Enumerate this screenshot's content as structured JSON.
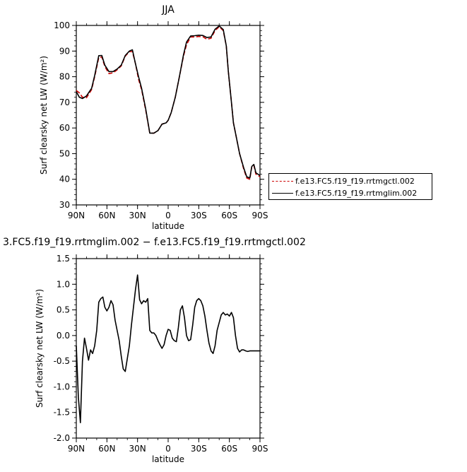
{
  "chart_data": [
    {
      "type": "line",
      "title": "JJA",
      "xlabel": "latitude",
      "ylabel": "Surf clearsky net LW (W/m²)",
      "ylim": [
        30,
        100
      ],
      "yticks": [
        30,
        40,
        50,
        60,
        70,
        80,
        90,
        100
      ],
      "xlim": [
        90,
        -90
      ],
      "xticks": [
        90,
        60,
        30,
        0,
        -30,
        -60,
        -90
      ],
      "xticklabels": [
        "90N",
        "60N",
        "30N",
        "0",
        "30S",
        "60S",
        "90S"
      ],
      "legend_position": "right",
      "series": [
        {
          "name": "f.e13.FC5.f19_f19.rrtmgctl.002",
          "color": "#cc0000",
          "dash": "dashed",
          "x": [
            90,
            87,
            84,
            80,
            75,
            72,
            68,
            65,
            62,
            58,
            54,
            50,
            46,
            42,
            38,
            35,
            32,
            29,
            26,
            22,
            18,
            14,
            10,
            6,
            2,
            0,
            -3,
            -7,
            -11,
            -15,
            -18,
            -22,
            -26,
            -30,
            -34,
            -38,
            -42,
            -46,
            -50,
            -54,
            -57,
            -59,
            -62,
            -64,
            -67,
            -70,
            -74,
            -77,
            -80,
            -82,
            -84,
            -86,
            -88,
            -90
          ],
          "values": [
            74.6,
            73.7,
            72.0,
            71.8,
            75.0,
            80.0,
            87.5,
            87.7,
            84.0,
            81.2,
            81.5,
            82.7,
            84.2,
            88.0,
            89.8,
            89.8,
            85.0,
            79.0,
            75.0,
            67.0,
            58.0,
            58.0,
            59.0,
            61.5,
            62.0,
            63.0,
            66.0,
            72.0,
            80.0,
            88.0,
            92.5,
            95.5,
            95.5,
            95.7,
            95.6,
            94.6,
            95.0,
            98.0,
            99.5,
            98.0,
            92.0,
            82.0,
            70.0,
            62.0,
            56.0,
            50.0,
            44.0,
            40.5,
            40.0,
            45.0,
            45.5,
            42.0,
            41.5,
            41.0
          ]
        },
        {
          "name": "f.e13.FC5.f19_f19.rrtmglim.002",
          "color": "#000000",
          "dash": "solid",
          "x": [
            90,
            87,
            84,
            80,
            75,
            72,
            68,
            65,
            62,
            58,
            54,
            50,
            46,
            42,
            38,
            35,
            32,
            29,
            26,
            22,
            18,
            14,
            10,
            6,
            2,
            0,
            -3,
            -7,
            -11,
            -15,
            -18,
            -22,
            -26,
            -30,
            -34,
            -38,
            -42,
            -46,
            -50,
            -54,
            -57,
            -59,
            -62,
            -64,
            -67,
            -70,
            -74,
            -77,
            -80,
            -82,
            -84,
            -86,
            -88,
            -90
          ],
          "values": [
            74.2,
            72.0,
            71.5,
            72.5,
            75.5,
            80.5,
            88.2,
            88.3,
            84.5,
            82.0,
            82.0,
            83.0,
            84.5,
            88.3,
            90.0,
            90.5,
            85.0,
            80.0,
            75.5,
            67.5,
            58.0,
            58.0,
            59.0,
            61.5,
            62.0,
            63.0,
            66.0,
            72.0,
            80.0,
            88.5,
            93.5,
            95.9,
            96.0,
            96.2,
            96.1,
            95.3,
            95.5,
            98.5,
            99.8,
            98.4,
            92.0,
            82.0,
            70.0,
            62.0,
            56.0,
            50.0,
            44.5,
            41.0,
            40.5,
            45.0,
            45.8,
            42.5,
            42.0,
            41.5
          ]
        }
      ]
    },
    {
      "type": "line",
      "title": "3.FC5.f19_f19.rrtmglim.002 − f.e13.FC5.f19_f19.rrtmgctl.002",
      "xlabel": "latitude",
      "ylabel": "Surf clearsky net LW (W/m²)",
      "ylim": [
        -2.0,
        1.5
      ],
      "yticks": [
        -2.0,
        -1.5,
        -1.0,
        -0.5,
        0.0,
        0.5,
        1.0,
        1.5
      ],
      "yticklabels": [
        "-2.0",
        "-1.5",
        "-1.0",
        "-0.5",
        "0.0",
        "0.5",
        "1.0",
        "1.5"
      ],
      "xlim": [
        90,
        -90
      ],
      "xticks": [
        90,
        60,
        30,
        0,
        -30,
        -60,
        -90
      ],
      "xticklabels": [
        "90N",
        "60N",
        "30N",
        "0",
        "30S",
        "60S",
        "90S"
      ],
      "series": [
        {
          "color": "#000000",
          "dash": "solid",
          "x": [
            90,
            88,
            86,
            84,
            82,
            80,
            78,
            76,
            74,
            72,
            70,
            68,
            66,
            64,
            62,
            60,
            58,
            56,
            54,
            52,
            50,
            48,
            46,
            44,
            42,
            40,
            38,
            36,
            34,
            32,
            30,
            28,
            26,
            24,
            22,
            20,
            18,
            16,
            14,
            12,
            10,
            8,
            6,
            4,
            2,
            0,
            -2,
            -4,
            -6,
            -8,
            -10,
            -12,
            -14,
            -16,
            -18,
            -20,
            -22,
            -24,
            -26,
            -28,
            -30,
            -32,
            -34,
            -36,
            -38,
            -40,
            -42,
            -44,
            -46,
            -48,
            -50,
            -52,
            -54,
            -56,
            -58,
            -60,
            -62,
            -64,
            -66,
            -68,
            -70,
            -72,
            -74,
            -76,
            -78,
            -80,
            -82,
            -84,
            -86,
            -88,
            -90
          ],
          "values": [
            -0.2,
            -1.2,
            -1.7,
            -0.5,
            -0.05,
            -0.25,
            -0.48,
            -0.28,
            -0.35,
            -0.2,
            0.1,
            0.65,
            0.72,
            0.75,
            0.55,
            0.48,
            0.55,
            0.68,
            0.6,
            0.3,
            0.1,
            -0.1,
            -0.4,
            -0.65,
            -0.7,
            -0.45,
            -0.2,
            0.2,
            0.55,
            0.9,
            1.18,
            0.7,
            0.62,
            0.68,
            0.65,
            0.72,
            0.1,
            0.05,
            0.05,
            0.0,
            -0.1,
            -0.18,
            -0.25,
            -0.18,
            0.0,
            0.12,
            0.1,
            -0.05,
            -0.1,
            -0.12,
            0.15,
            0.5,
            0.58,
            0.35,
            0.0,
            -0.1,
            -0.08,
            0.2,
            0.55,
            0.68,
            0.72,
            0.68,
            0.58,
            0.38,
            0.1,
            -0.15,
            -0.3,
            -0.35,
            -0.2,
            0.1,
            0.25,
            0.4,
            0.45,
            0.4,
            0.42,
            0.38,
            0.45,
            0.35,
            0.0,
            -0.25,
            -0.32,
            -0.28,
            -0.28,
            -0.3,
            -0.31,
            -0.3,
            -0.3,
            -0.3,
            -0.3,
            -0.3,
            -0.3
          ]
        }
      ]
    }
  ]
}
